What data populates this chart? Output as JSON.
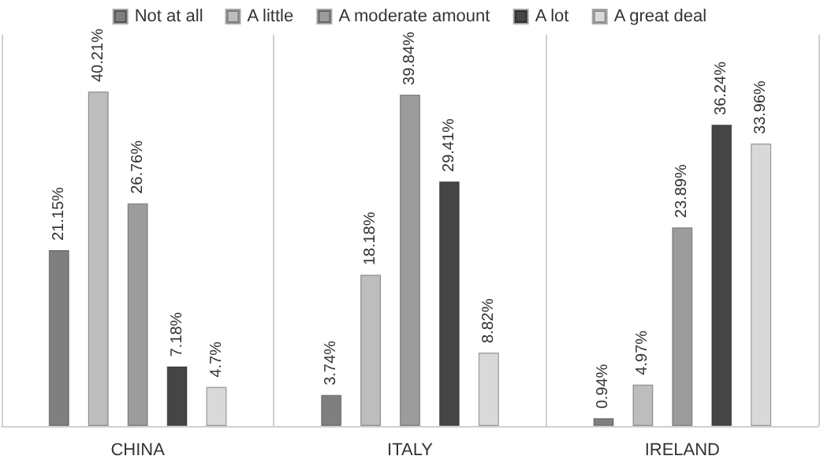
{
  "chart_data": {
    "type": "bar",
    "categories": [
      "CHINA",
      "ITALY",
      "IRELAND"
    ],
    "legend": "top",
    "grid": false,
    "series": [
      {
        "name": "Not at all",
        "color": "#7f7f7f",
        "values": [
          21.15,
          3.74,
          0.94
        ],
        "value_labels": [
          "21.15%",
          "3.74%",
          "0.94%"
        ]
      },
      {
        "name": "A little",
        "color": "#bdbdbd",
        "values": [
          40.21,
          18.18,
          4.97
        ],
        "value_labels": [
          "40.21%",
          "18.18%",
          "4.97%"
        ]
      },
      {
        "name": "A moderate amount",
        "color": "#9c9c9c",
        "values": [
          26.76,
          39.84,
          23.89
        ],
        "value_labels": [
          "26.76%",
          "39.84%",
          "23.89%"
        ]
      },
      {
        "name": "A lot",
        "color": "#454545",
        "values": [
          7.18,
          29.41,
          36.24
        ],
        "value_labels": [
          "7.18%",
          "29.41%",
          "36.24%"
        ]
      },
      {
        "name": "A great deal",
        "color": "#d9d9d9",
        "values": [
          4.7,
          8.82,
          33.96
        ],
        "value_labels": [
          "4.7%",
          "8.82%",
          "33.96%"
        ]
      }
    ]
  }
}
